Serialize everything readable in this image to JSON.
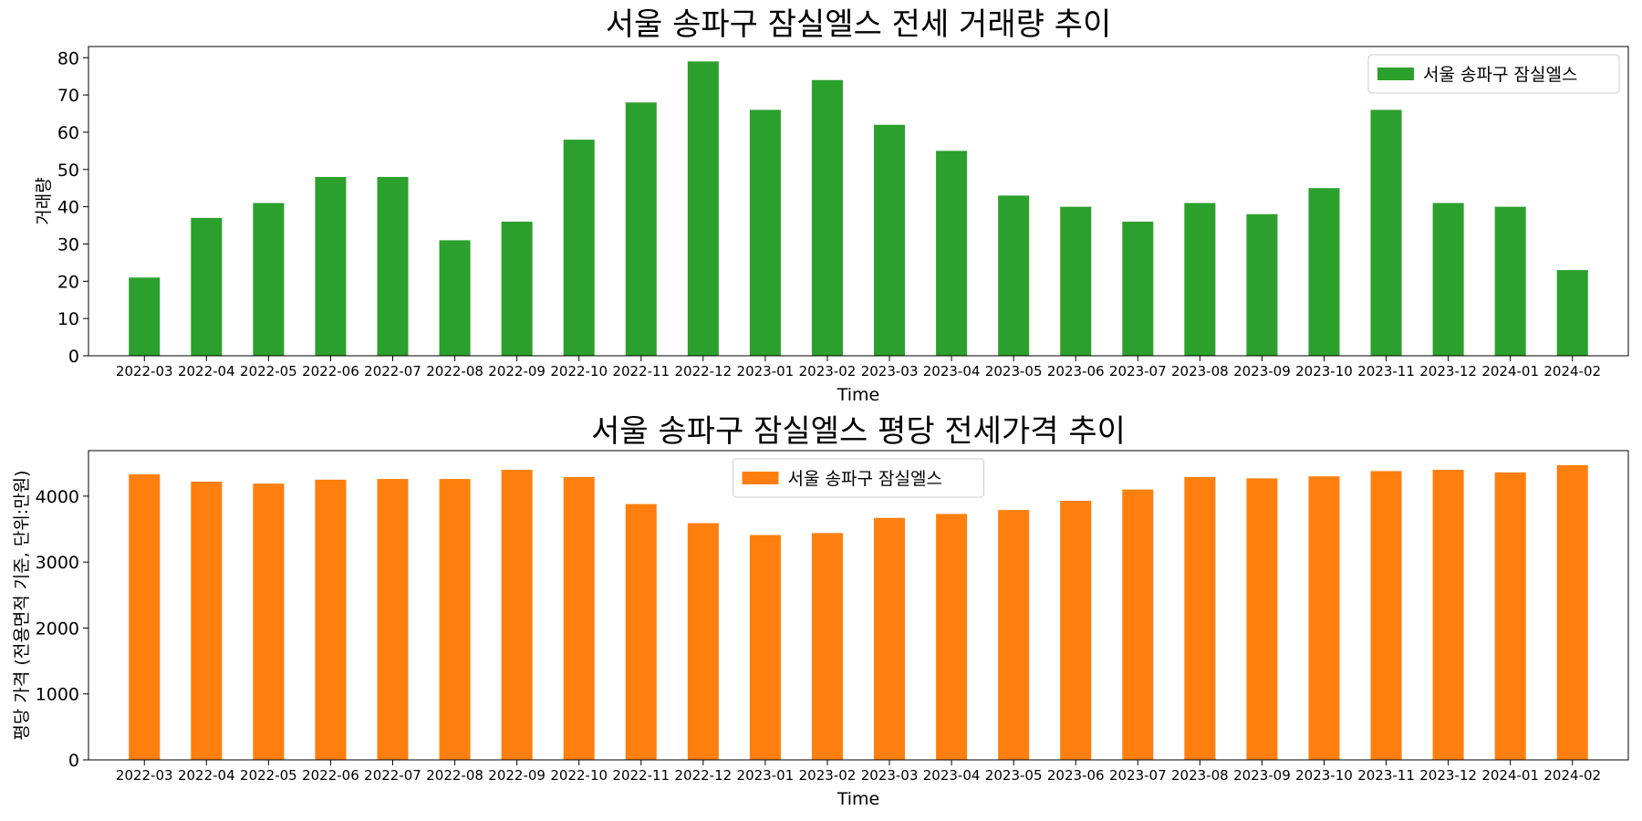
{
  "chart_data": [
    {
      "type": "bar",
      "title": "서울 송파구 잠실엘스 전세 거래량 추이",
      "xlabel": "Time",
      "ylabel": "거래량",
      "ylim": [
        0,
        83
      ],
      "yticks": [
        "0",
        "10",
        "20",
        "30",
        "40",
        "50",
        "60",
        "70",
        "80"
      ],
      "categories": [
        "2022-03",
        "2022-04",
        "2022-05",
        "2022-06",
        "2022-07",
        "2022-08",
        "2022-09",
        "2022-10",
        "2022-11",
        "2022-12",
        "2023-01",
        "2023-02",
        "2023-03",
        "2023-04",
        "2023-05",
        "2023-06",
        "2023-07",
        "2023-08",
        "2023-09",
        "2023-10",
        "2023-11",
        "2023-12",
        "2024-01",
        "2024-02"
      ],
      "series": [
        {
          "name": "서울 송파구 잠실엘스",
          "color": "#2ca02c",
          "values": [
            21,
            37,
            41,
            48,
            48,
            31,
            36,
            58,
            68,
            79,
            66,
            74,
            62,
            55,
            43,
            40,
            36,
            41,
            38,
            45,
            66,
            41,
            40,
            23
          ]
        }
      ],
      "legend": "top-right",
      "grid": false
    },
    {
      "type": "bar",
      "title": "서울 송파구 잠실엘스 평당 전세가격 추이",
      "xlabel": "Time",
      "ylabel": "평당 가격 (전용면적 기준, 단위:만원)",
      "ylim": [
        0,
        4690
      ],
      "yticks": [
        "0",
        "1000",
        "2000",
        "3000",
        "4000"
      ],
      "categories": [
        "2022-03",
        "2022-04",
        "2022-05",
        "2022-06",
        "2022-07",
        "2022-08",
        "2022-09",
        "2022-10",
        "2022-11",
        "2022-12",
        "2023-01",
        "2023-02",
        "2023-03",
        "2023-04",
        "2023-05",
        "2023-06",
        "2023-07",
        "2023-08",
        "2023-09",
        "2023-10",
        "2023-11",
        "2023-12",
        "2024-01",
        "2024-02"
      ],
      "series": [
        {
          "name": "서울 송파구 잠실엘스",
          "color": "#ff7f0e",
          "values": [
            4330,
            4220,
            4190,
            4250,
            4260,
            4260,
            4400,
            4290,
            3880,
            3590,
            3410,
            3440,
            3670,
            3730,
            3790,
            3930,
            4100,
            4290,
            4270,
            4300,
            4380,
            4400,
            4360,
            4470
          ]
        }
      ],
      "legend": "top-center",
      "grid": false
    }
  ]
}
